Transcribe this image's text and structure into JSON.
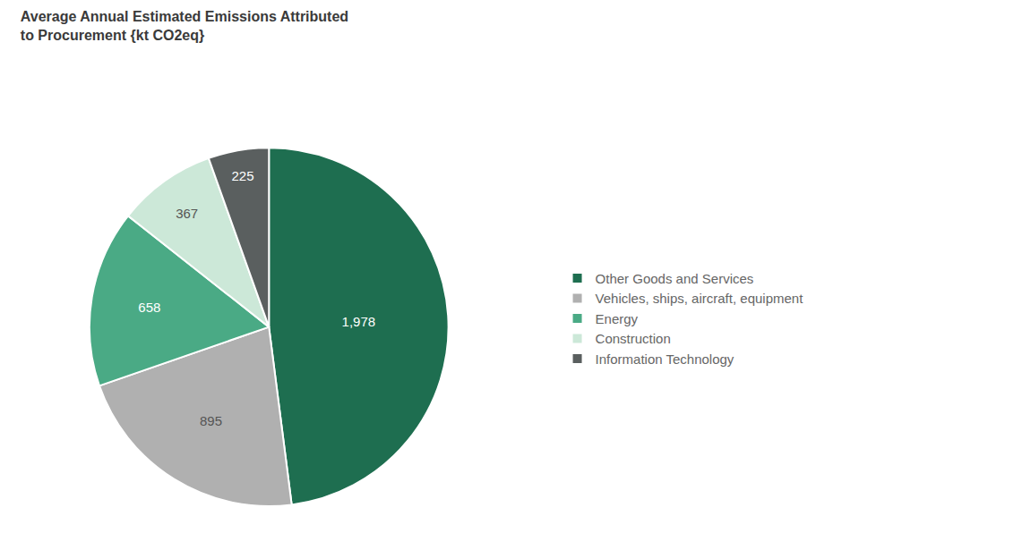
{
  "chart_data": {
    "type": "pie",
    "title": "Average Annual Estimated Emissions Attributed\nto Procurement {kt CO2eq}",
    "categories": [
      "Other Goods and Services",
      "Vehicles, ships, aircraft, equipment",
      "Energy",
      "Construction",
      "Information Technology"
    ],
    "values": [
      1978,
      895,
      658,
      367,
      225
    ],
    "value_labels": [
      "1,978",
      "895",
      "658",
      "367",
      "225"
    ],
    "colors": [
      "#1e6e50",
      "#b0b0b0",
      "#4aaa85",
      "#cce8d8",
      "#5a5f5f"
    ],
    "data_labels": true,
    "legend": "right"
  }
}
